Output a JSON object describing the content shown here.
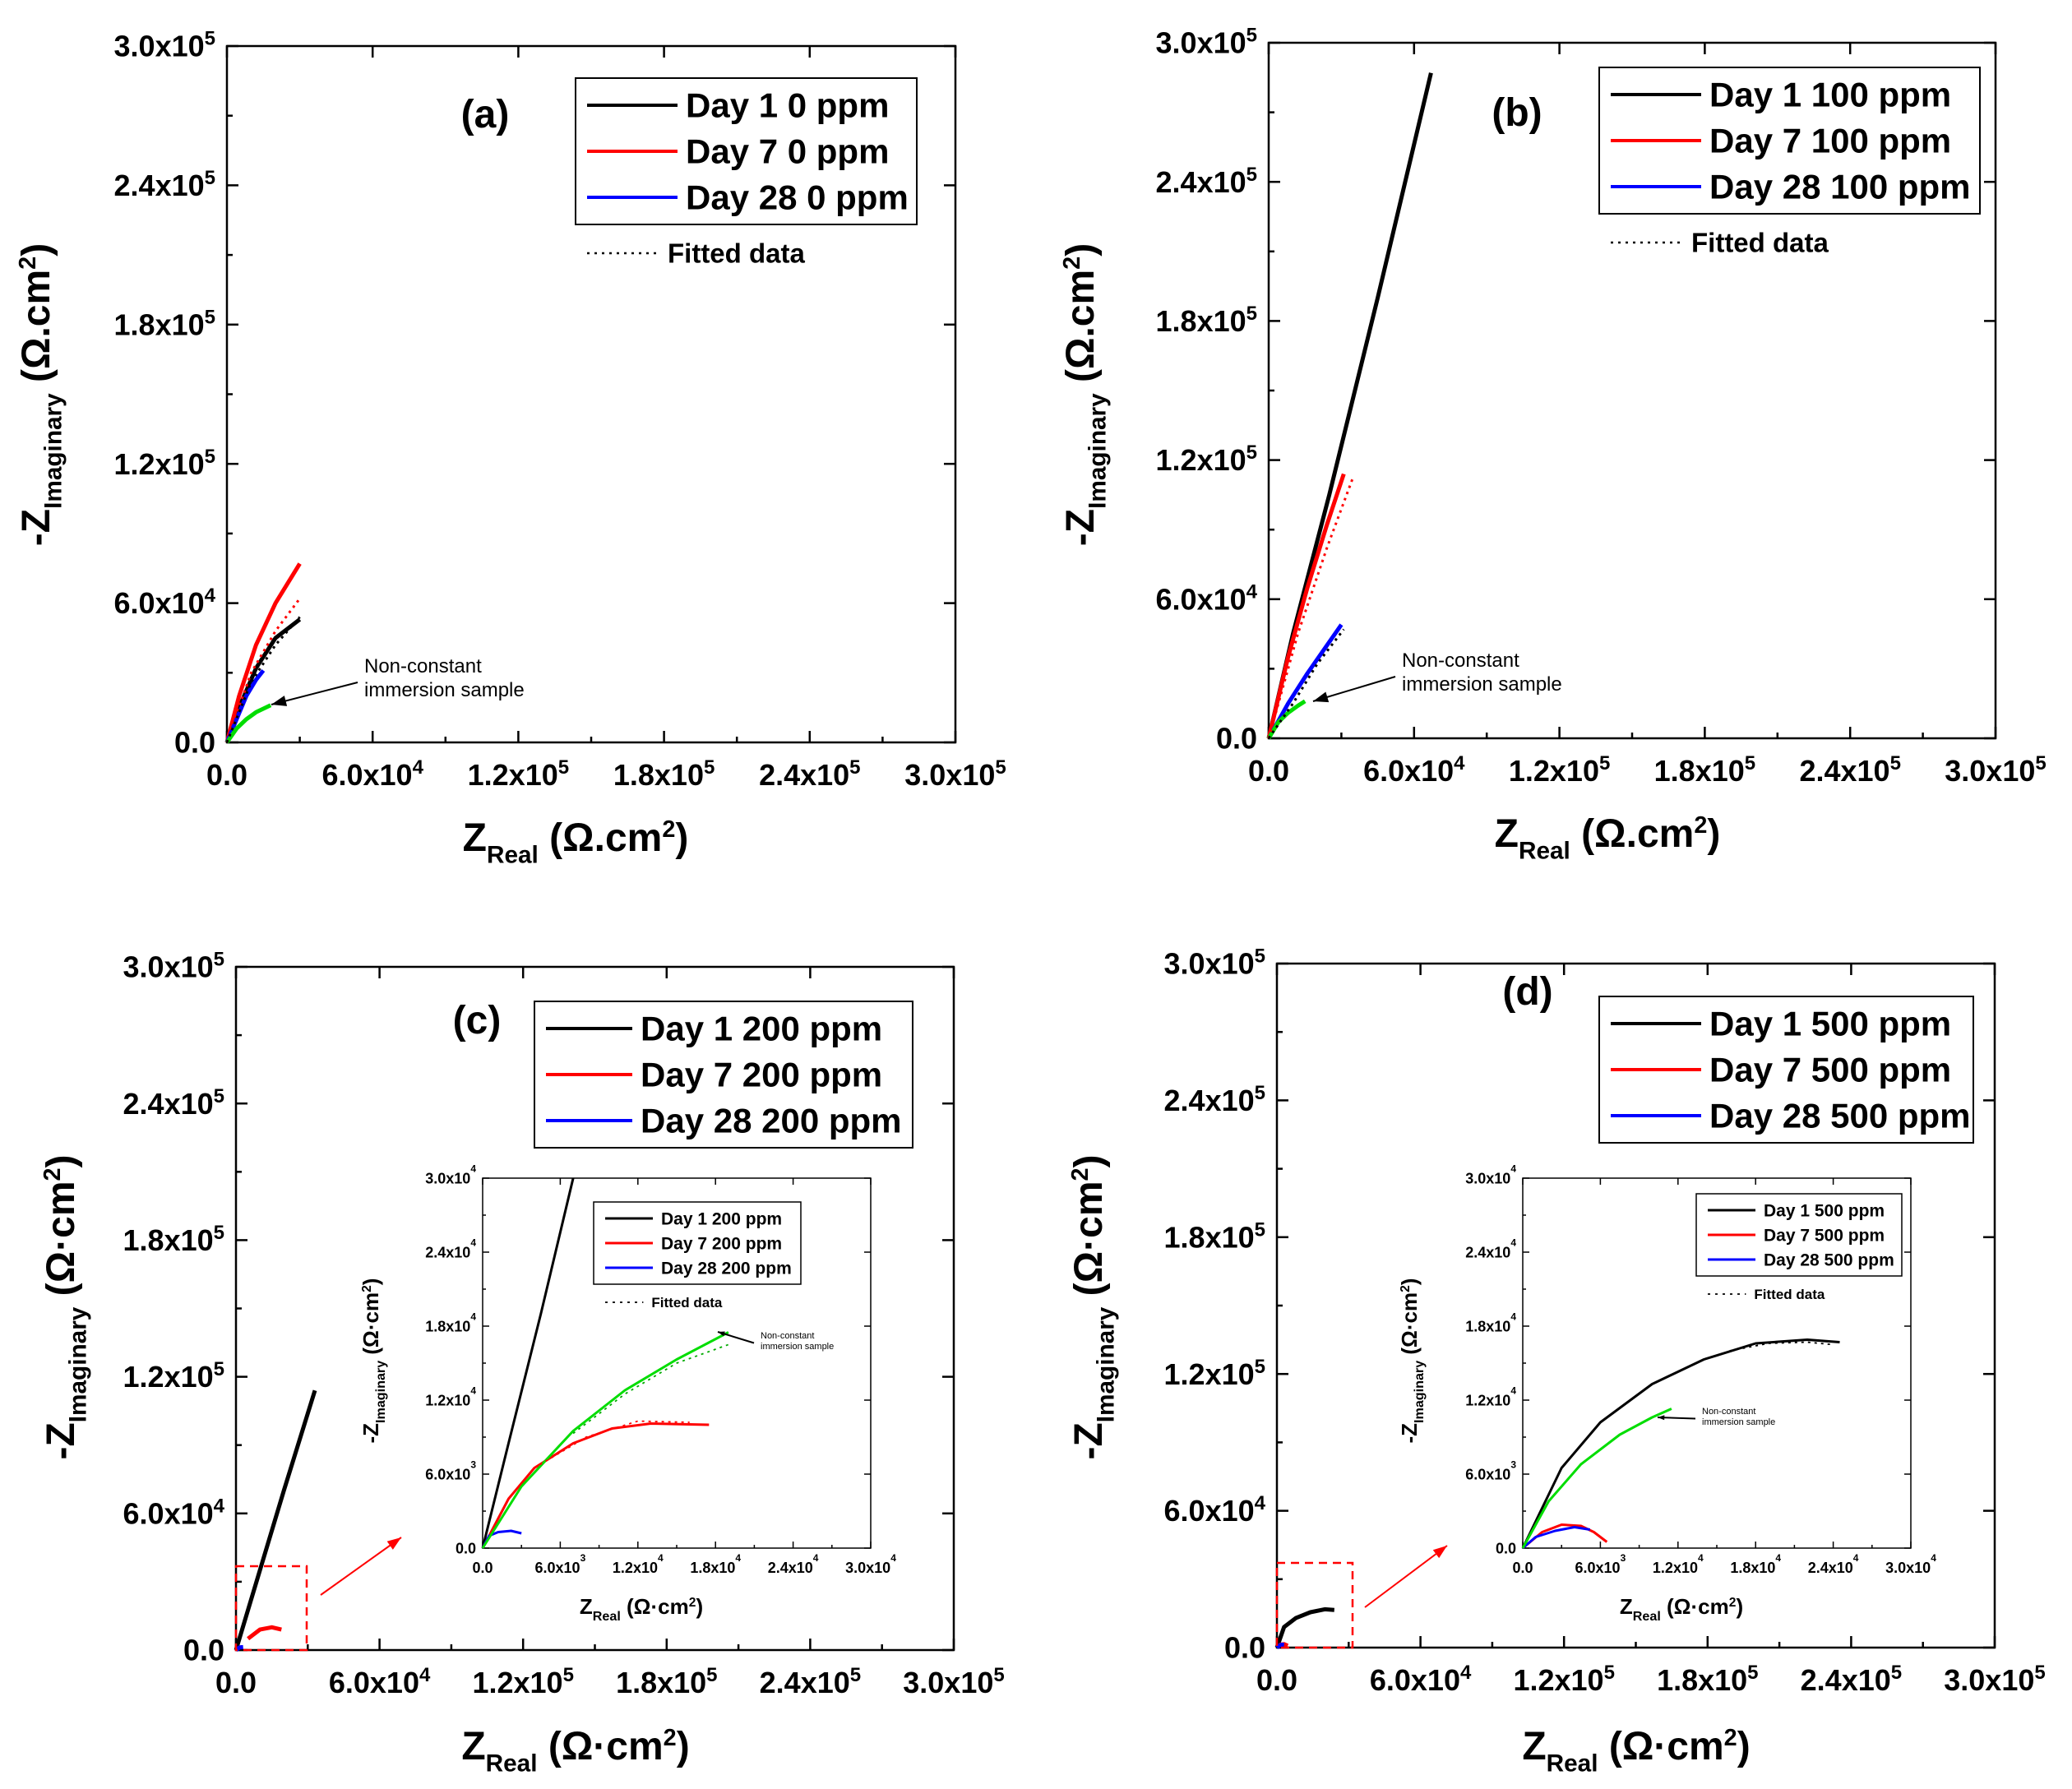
{
  "chart_data": [
    {
      "type": "line",
      "panel_label": "(a)",
      "xlabel": "Z",
      "xlabel_sub": "Real",
      "xlabel_unit": "(Ω.cm2)",
      "ylabel": "-Z",
      "ylabel_sub": "Imaginary",
      "ylabel_unit": "(Ω.cm2)",
      "xlim": [
        0,
        300000
      ],
      "ylim": [
        0,
        300000
      ],
      "xticks": [
        "0.0",
        "6.0x10|4",
        "1.2x10|5",
        "1.8x10|5",
        "2.4x10|5",
        "3.0x10|5"
      ],
      "yticks": [
        "0.0",
        "6.0x10|4",
        "1.2x10|5",
        "1.8x10|5",
        "2.4x10|5",
        "3.0x10|5"
      ],
      "legend": [
        "Day 1 0 ppm",
        "Day 7 0 ppm",
        "Day 28 0 ppm"
      ],
      "fitted_label": "Fitted data",
      "annotation": [
        "Non-constant",
        "immersion sample"
      ],
      "series": [
        {
          "name": "Day 1 0 ppm",
          "color": "#000000",
          "x": [
            0,
            5000,
            12000,
            20000,
            30000
          ],
          "y": [
            0,
            15000,
            32000,
            45000,
            53000
          ]
        },
        {
          "name": "Day 7 0 ppm",
          "color": "#ff0000",
          "x": [
            0,
            5000,
            12000,
            20000,
            30000
          ],
          "y": [
            0,
            20000,
            42000,
            60000,
            77000
          ]
        },
        {
          "name": "Day 28 0 ppm",
          "color": "#0000ff",
          "x": [
            0,
            4000,
            8000,
            12000,
            15000
          ],
          "y": [
            0,
            10000,
            20000,
            27000,
            31000
          ]
        },
        {
          "name": "Non-constant immersion sample",
          "color": "#00dd00",
          "x": [
            0,
            4000,
            8000,
            12000,
            18000
          ],
          "y": [
            0,
            6000,
            10000,
            13000,
            16000
          ]
        }
      ],
      "fitted": [
        {
          "color": "#ff0000",
          "x": [
            0,
            10000,
            20000,
            30000
          ],
          "y": [
            0,
            30000,
            48000,
            62000
          ]
        },
        {
          "color": "#000000",
          "x": [
            0,
            10000,
            20000,
            30000
          ],
          "y": [
            0,
            26000,
            42000,
            54000
          ]
        }
      ],
      "inset": null
    },
    {
      "type": "line",
      "panel_label": "(b)",
      "xlabel": "Z",
      "xlabel_sub": "Real",
      "xlabel_unit": "(Ω.cm2)",
      "ylabel": "-Z",
      "ylabel_sub": "Imaginary",
      "ylabel_unit": "(Ω.cm2)",
      "xlim": [
        0,
        300000
      ],
      "ylim": [
        0,
        300000
      ],
      "xticks": [
        "0.0",
        "6.0x10|4",
        "1.2x10|5",
        "1.8x10|5",
        "2.4x10|5",
        "3.0x10|5"
      ],
      "yticks": [
        "0.0",
        "6.0x10|4",
        "1.2x10|5",
        "1.8x10|5",
        "2.4x10|5",
        "3.0x10|5"
      ],
      "legend": [
        "Day 1 100 ppm",
        "Day 7 100 ppm",
        "Day 28 100 ppm"
      ],
      "fitted_label": "Fitted data",
      "annotation": [
        "Non-constant",
        "immersion sample"
      ],
      "series": [
        {
          "name": "Day 1 100 ppm",
          "color": "#000000",
          "x": [
            0,
            10000,
            25000,
            45000,
            67000
          ],
          "y": [
            0,
            45000,
            105000,
            190000,
            287000
          ]
        },
        {
          "name": "Day 7 100 ppm",
          "color": "#ff0000",
          "x": [
            0,
            8000,
            16000,
            24000,
            31000
          ],
          "y": [
            0,
            35000,
            65000,
            92000,
            114000
          ]
        },
        {
          "name": "Day 28 100 ppm",
          "color": "#0000ff",
          "x": [
            0,
            8000,
            16000,
            24000,
            30000
          ],
          "y": [
            0,
            15000,
            28000,
            40000,
            49000
          ]
        },
        {
          "name": "Non-constant immersion sample",
          "color": "#00dd00",
          "x": [
            0,
            4000,
            8000,
            12000,
            15000
          ],
          "y": [
            0,
            7000,
            11000,
            14000,
            16000
          ]
        }
      ],
      "fitted": [
        {
          "color": "#ff0000",
          "x": [
            0,
            12000,
            24000,
            35000
          ],
          "y": [
            0,
            45000,
            82000,
            113000
          ]
        },
        {
          "color": "#000000",
          "x": [
            0,
            10000,
            20000,
            31000
          ],
          "y": [
            0,
            15000,
            32000,
            47000
          ]
        }
      ],
      "inset": null
    },
    {
      "type": "line",
      "panel_label": "(c)",
      "xlabel": "Z",
      "xlabel_sub": "Real",
      "xlabel_unit": "(Ω·cm2)",
      "ylabel": "-Z",
      "ylabel_sub": "Imaginary",
      "ylabel_unit": "(Ω·cm2)",
      "xlim": [
        0,
        300000
      ],
      "ylim": [
        0,
        300000
      ],
      "xticks": [
        "0.0",
        "6.0x10|4",
        "1.2x10|5",
        "1.8x10|5",
        "2.4x10|5",
        "3.0x10|5"
      ],
      "yticks": [
        "0.0",
        "6.0x10|4",
        "1.2x10|5",
        "1.8x10|5",
        "2.4x10|5",
        "3.0x10|5"
      ],
      "legend": [
        "Day 1 200 ppm",
        "Day 7 200 ppm",
        "Day 28 200 ppm"
      ],
      "fitted_label": null,
      "annotation": null,
      "series": [
        {
          "name": "Day 1 200 ppm",
          "color": "#000000",
          "x": [
            0,
            10000,
            20000,
            33000
          ],
          "y": [
            0,
            35000,
            70000,
            114000
          ]
        },
        {
          "name": "Day 7 200 ppm",
          "color": "#ff0000",
          "x": [
            5000,
            10000,
            15000,
            19000
          ],
          "y": [
            5000,
            9000,
            10000,
            9000
          ]
        },
        {
          "name": "Day 28 200 ppm",
          "color": "#0000ff",
          "x": [
            0,
            1500,
            3000
          ],
          "y": [
            0,
            1200,
            1300
          ]
        }
      ],
      "fitted": [],
      "inset": {
        "xlim": [
          0,
          30000
        ],
        "ylim": [
          0,
          30000
        ],
        "xlabel": "Z",
        "xlabel_sub": "Real",
        "xlabel_unit": "(Ω·cm2)",
        "ylabel": "-Z",
        "ylabel_sub": "Imaginary",
        "ylabel_unit": "(Ω·cm2)",
        "xticks": [
          "0.0",
          "6.0x10|3",
          "1.2x10|4",
          "1.8x10|4",
          "2.4x10|4",
          "3.0x10|4"
        ],
        "yticks": [
          "0.0",
          "6.0x10|3",
          "1.2x10|4",
          "1.8x10|4",
          "2.4x10|4",
          "3.0x10|4"
        ],
        "legend": [
          "Day 1 200 ppm",
          "Day 7 200 ppm",
          "Day 28 200 ppm"
        ],
        "fitted_label": "Fitted data",
        "annotation": [
          "Non-constant",
          "immersion sample"
        ],
        "series": [
          {
            "name": "Day 1 200 ppm",
            "color": "#000000",
            "x": [
              0,
              2000,
              4500,
              7000
            ],
            "y": [
              0,
              8500,
              19000,
              30000
            ]
          },
          {
            "name": "Day 7 200 ppm",
            "color": "#ff0000",
            "x": [
              0,
              2000,
              4000,
              7000,
              10000,
              13000,
              17500
            ],
            "y": [
              0,
              4000,
              6500,
              8500,
              9700,
              10100,
              10000
            ]
          },
          {
            "name": "Day 28 200 ppm",
            "color": "#0000ff",
            "x": [
              0,
              500,
              1200,
              2200,
              3000
            ],
            "y": [
              0,
              1000,
              1300,
              1400,
              1200
            ]
          },
          {
            "name": "Non-constant immersion sample",
            "color": "#00dd00",
            "x": [
              0,
              3000,
              7000,
              11000,
              15000,
              19000
            ],
            "y": [
              0,
              5000,
              9500,
              12800,
              15300,
              17500
            ]
          }
        ],
        "fitted": [
          {
            "color": "#00aa00",
            "x": [
              7000,
              11000,
              15000,
              19000
            ],
            "y": [
              9300,
              12500,
              15000,
              16500
            ]
          },
          {
            "color": "#ff0000",
            "x": [
              4000,
              8000,
              12000,
              16000
            ],
            "y": [
              6500,
              9000,
              10300,
              10200
            ]
          }
        ]
      }
    },
    {
      "type": "line",
      "panel_label": "(d)",
      "xlabel": "Z",
      "xlabel_sub": "Real",
      "xlabel_unit": "(Ω·cm2)",
      "ylabel": "-Z",
      "ylabel_sub": "Imaginary",
      "ylabel_unit": "(Ω·cm2)",
      "xlim": [
        0,
        300000
      ],
      "ylim": [
        0,
        300000
      ],
      "xticks": [
        "0.0",
        "6.0x10|4",
        "1.2x10|5",
        "1.8x10|5",
        "2.4x10|5",
        "3.0x10|5"
      ],
      "yticks": [
        "0.0",
        "6.0x10|4",
        "1.2x10|5",
        "1.8x10|5",
        "2.4x10|5",
        "3.0x10|5"
      ],
      "legend": [
        "Day 1 500 ppm",
        "Day 7 500 ppm",
        "Day 28 500 ppm"
      ],
      "fitted_label": null,
      "annotation": null,
      "series": [
        {
          "name": "Day 1 500 ppm",
          "color": "#000000",
          "x": [
            0,
            3000,
            8000,
            14000,
            20000,
            24000
          ],
          "y": [
            0,
            9000,
            13000,
            15500,
            16800,
            16500
          ]
        },
        {
          "name": "Day 7 500 ppm",
          "color": "#ff0000",
          "x": [
            0,
            1500,
            3000,
            4500
          ],
          "y": [
            0,
            1300,
            1500,
            800
          ]
        },
        {
          "name": "Day 28 500 ppm",
          "color": "#0000ff",
          "x": [
            0,
            1000,
            2000,
            3000
          ],
          "y": [
            0,
            900,
            1300,
            1200
          ]
        }
      ],
      "fitted": [],
      "inset": {
        "xlim": [
          0,
          30000
        ],
        "ylim": [
          0,
          30000
        ],
        "xlabel": "Z",
        "xlabel_sub": "Real",
        "xlabel_unit": "(Ω·cm2)",
        "ylabel": "-Z",
        "ylabel_sub": "Imaginary",
        "ylabel_unit": "(Ω·cm2)",
        "xticks": [
          "0.0",
          "6.0x10|3",
          "1.2x10|4",
          "1.8x10|4",
          "2.4x10|4",
          "3.0x10|4"
        ],
        "yticks": [
          "0.0",
          "6.0x10|3",
          "1.2x10|4",
          "1.8x10|4",
          "2.4x10|4",
          "3.0x10|4"
        ],
        "legend": [
          "Day 1 500 ppm",
          "Day 7 500 ppm",
          "Day 28 500 ppm"
        ],
        "fitted_label": "Fitted data",
        "annotation": [
          "Non-constant",
          "immersion sample"
        ],
        "series": [
          {
            "name": "Day 1 500 ppm",
            "color": "#000000",
            "x": [
              0,
              3000,
              6000,
              10000,
              14000,
              18000,
              22000,
              24500
            ],
            "y": [
              0,
              6500,
              10200,
              13300,
              15300,
              16600,
              16900,
              16700
            ]
          },
          {
            "name": "Day 7 500 ppm",
            "color": "#ff0000",
            "x": [
              0,
              1500,
              3000,
              4500,
              5500,
              6500
            ],
            "y": [
              0,
              1300,
              1900,
              1800,
              1300,
              500
            ]
          },
          {
            "name": "Day 28 500 ppm",
            "color": "#0000ff",
            "x": [
              0,
              1000,
              2500,
              4000,
              5200
            ],
            "y": [
              0,
              900,
              1400,
              1700,
              1500
            ]
          },
          {
            "name": "Non-constant immersion sample",
            "color": "#00dd00",
            "x": [
              0,
              2000,
              4500,
              7500,
              10000,
              11500
            ],
            "y": [
              0,
              3800,
              6800,
              9200,
              10600,
              11300
            ]
          }
        ],
        "fitted": [
          {
            "color": "#000000",
            "x": [
              16000,
              19000,
              22000,
              24000
            ],
            "y": [
              16000,
              16600,
              16700,
              16500
            ]
          }
        ]
      }
    }
  ]
}
